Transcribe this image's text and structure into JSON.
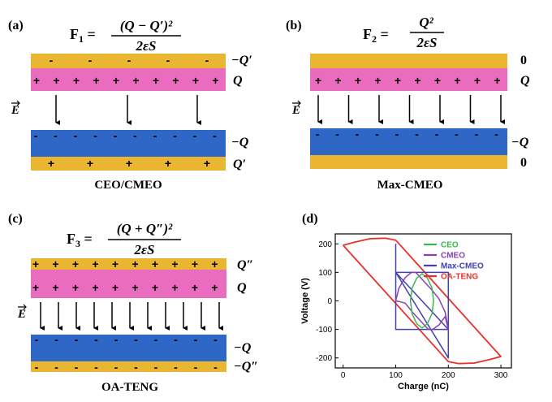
{
  "panels": {
    "a": {
      "label": "(a)",
      "formula_lhs": "F",
      "formula_sub": "1",
      "formula_num": "(Q − Q′)²",
      "formula_den": "2εS",
      "caption": "CEO/CMEO",
      "top_layers": {
        "gold_label": "−Q′",
        "pink_label": "Q"
      },
      "bottom_layers": {
        "blue_label": "−Q",
        "gold_label": "Q′"
      },
      "arrow_count": 3
    },
    "b": {
      "label": "(b)",
      "formula_lhs": "F",
      "formula_sub": "2",
      "formula_num": "Q²",
      "formula_den": "2εS",
      "caption": "Max-CMEO",
      "top_layers": {
        "gold_label": "0",
        "pink_label": "Q"
      },
      "bottom_layers": {
        "blue_label": "−Q",
        "gold_label": "0"
      },
      "arrow_count": 7
    },
    "c": {
      "label": "(c)",
      "formula_lhs": "F",
      "formula_sub": "3",
      "formula_num": "(Q + Q″)²",
      "formula_den": "2εS",
      "caption": "OA-TENG",
      "top_layers": {
        "gold_label": "Q″",
        "pink_label": "Q"
      },
      "bottom_layers": {
        "blue_label": "−Q",
        "gold_label": "−Q″"
      },
      "arrow_count": 11
    },
    "d": {
      "label": "(d)"
    }
  },
  "field_symbol": "E",
  "signs": {
    "plus": "+",
    "minus": "-"
  },
  "colors": {
    "gold": "#eab531",
    "pink": "#ea6cbe",
    "blue": "#2e67c5",
    "ceo": "#3cb84a",
    "cmeo": "#8a3fb5",
    "max_cmeo": "#4040b0",
    "oa_teng": "#e8312a"
  },
  "chart_data": {
    "type": "line",
    "xlabel": "Charge (nC)",
    "ylabel": "Voltage (V)",
    "xlim": [
      -15,
      320
    ],
    "ylim": [
      -235,
      235
    ],
    "xticks": [
      0,
      100,
      200,
      300
    ],
    "yticks": [
      200,
      100,
      0,
      -100,
      -200
    ],
    "legend_position": "top-right",
    "series": [
      {
        "name": "CEO",
        "color": "#3cb84a",
        "points": [
          [
            150,
            -95
          ],
          [
            140,
            -80
          ],
          [
            131,
            -45
          ],
          [
            128,
            0
          ],
          [
            131,
            45
          ],
          [
            140,
            80
          ],
          [
            150,
            95
          ],
          [
            160,
            80
          ],
          [
            169,
            45
          ],
          [
            172,
            0
          ],
          [
            169,
            -45
          ],
          [
            160,
            -80
          ],
          [
            150,
            -95
          ]
        ]
      },
      {
        "name": "CMEO",
        "color": "#8a3fb5",
        "points": [
          [
            100,
            0
          ],
          [
            106,
            45
          ],
          [
            118,
            82
          ],
          [
            130,
            100
          ],
          [
            138,
            100
          ],
          [
            168,
            40
          ],
          [
            182,
            8
          ],
          [
            194,
            -40
          ],
          [
            200,
            -100
          ],
          [
            194,
            -55
          ],
          [
            182,
            -85
          ],
          [
            170,
            -100
          ],
          [
            162,
            -100
          ],
          [
            132,
            -40
          ],
          [
            118,
            -8
          ],
          [
            106,
            -2
          ],
          [
            100,
            0
          ]
        ]
      },
      {
        "name": "Max-CMEO",
        "color": "#4040b0",
        "points": [
          [
            100,
            100
          ],
          [
            100,
            -100
          ],
          [
            200,
            -100
          ],
          [
            200,
            100
          ],
          [
            100,
            100
          ],
          [
            200,
            -200
          ],
          [
            200,
            -100
          ],
          [
            100,
            100
          ],
          [
            100,
            200
          ]
        ]
      },
      {
        "name": "OA-TENG",
        "color": "#e8312a",
        "points": [
          [
            0,
            195
          ],
          [
            20,
            205
          ],
          [
            50,
            218
          ],
          [
            80,
            220
          ],
          [
            100,
            213
          ],
          [
            300,
            -195
          ],
          [
            280,
            -205
          ],
          [
            250,
            -218
          ],
          [
            220,
            -220
          ],
          [
            200,
            -213
          ],
          [
            0,
            195
          ]
        ]
      }
    ]
  }
}
